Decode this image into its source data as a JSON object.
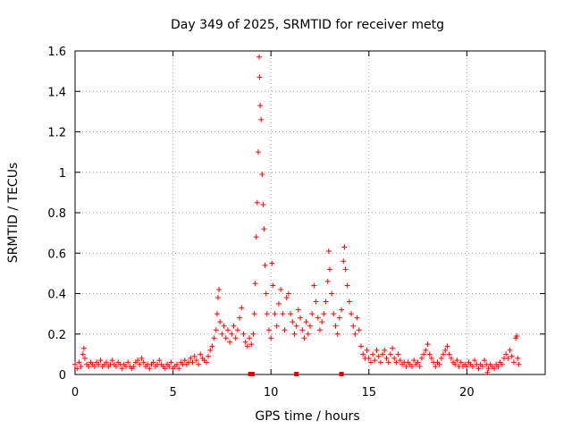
{
  "chart_data": {
    "type": "scatter",
    "title": "Day 349 of 2025, SRMTID for receiver metg",
    "xlabel": "GPS time / hours",
    "ylabel": "SRMTID / TECUs",
    "xlim": [
      0,
      24
    ],
    "ylim": [
      0,
      1.6
    ],
    "xticks": [
      0,
      5,
      10,
      15,
      20
    ],
    "xtick_labels": [
      "0",
      "5",
      "10",
      "15",
      "20"
    ],
    "yticks": [
      0,
      0.2,
      0.4,
      0.6,
      0.8,
      1.0,
      1.2,
      1.4,
      1.6
    ],
    "ytick_labels": [
      "0",
      "0.2",
      "0.4",
      "0.6",
      "0.8",
      "1",
      "1.2",
      "1.4",
      "1.6"
    ],
    "grid": true,
    "marker": "+",
    "color": "#ff0000",
    "series": [
      {
        "name": "SRMTID",
        "points": [
          [
            0.0,
            0.05
          ],
          [
            0.1,
            0.03
          ],
          [
            0.2,
            0.06
          ],
          [
            0.3,
            0.04
          ],
          [
            0.4,
            0.1
          ],
          [
            0.45,
            0.13
          ],
          [
            0.5,
            0.08
          ],
          [
            0.6,
            0.05
          ],
          [
            0.7,
            0.04
          ],
          [
            0.8,
            0.06
          ],
          [
            0.9,
            0.05
          ],
          [
            1.0,
            0.04
          ],
          [
            1.1,
            0.06
          ],
          [
            1.2,
            0.05
          ],
          [
            1.3,
            0.07
          ],
          [
            1.4,
            0.04
          ],
          [
            1.5,
            0.05
          ],
          [
            1.6,
            0.06
          ],
          [
            1.7,
            0.04
          ],
          [
            1.8,
            0.05
          ],
          [
            1.9,
            0.07
          ],
          [
            2.0,
            0.05
          ],
          [
            2.1,
            0.04
          ],
          [
            2.2,
            0.06
          ],
          [
            2.3,
            0.05
          ],
          [
            2.4,
            0.03
          ],
          [
            2.5,
            0.05
          ],
          [
            2.6,
            0.04
          ],
          [
            2.7,
            0.06
          ],
          [
            2.8,
            0.04
          ],
          [
            2.9,
            0.03
          ],
          [
            3.0,
            0.04
          ],
          [
            3.1,
            0.06
          ],
          [
            3.2,
            0.07
          ],
          [
            3.3,
            0.05
          ],
          [
            3.4,
            0.08
          ],
          [
            3.5,
            0.06
          ],
          [
            3.6,
            0.04
          ],
          [
            3.7,
            0.05
          ],
          [
            3.8,
            0.03
          ],
          [
            3.9,
            0.05
          ],
          [
            4.0,
            0.06
          ],
          [
            4.1,
            0.04
          ],
          [
            4.2,
            0.05
          ],
          [
            4.3,
            0.07
          ],
          [
            4.4,
            0.05
          ],
          [
            4.5,
            0.04
          ],
          [
            4.6,
            0.03
          ],
          [
            4.7,
            0.05
          ],
          [
            4.8,
            0.04
          ],
          [
            4.9,
            0.06
          ],
          [
            5.0,
            0.03
          ],
          [
            5.1,
            0.04
          ],
          [
            5.2,
            0.05
          ],
          [
            5.3,
            0.03
          ],
          [
            5.4,
            0.06
          ],
          [
            5.5,
            0.05
          ],
          [
            5.6,
            0.07
          ],
          [
            5.7,
            0.05
          ],
          [
            5.8,
            0.06
          ],
          [
            5.9,
            0.08
          ],
          [
            6.0,
            0.06
          ],
          [
            6.1,
            0.09
          ],
          [
            6.2,
            0.07
          ],
          [
            6.3,
            0.05
          ],
          [
            6.4,
            0.1
          ],
          [
            6.5,
            0.08
          ],
          [
            6.6,
            0.07
          ],
          [
            6.7,
            0.06
          ],
          [
            6.8,
            0.09
          ],
          [
            6.9,
            0.12
          ],
          [
            7.0,
            0.14
          ],
          [
            7.1,
            0.18
          ],
          [
            7.2,
            0.22
          ],
          [
            7.25,
            0.3
          ],
          [
            7.3,
            0.38
          ],
          [
            7.35,
            0.42
          ],
          [
            7.4,
            0.26
          ],
          [
            7.5,
            0.2
          ],
          [
            7.6,
            0.24
          ],
          [
            7.7,
            0.18
          ],
          [
            7.8,
            0.22
          ],
          [
            7.9,
            0.16
          ],
          [
            8.0,
            0.2
          ],
          [
            8.1,
            0.24
          ],
          [
            8.2,
            0.18
          ],
          [
            8.3,
            0.22
          ],
          [
            8.4,
            0.28
          ],
          [
            8.5,
            0.33
          ],
          [
            8.6,
            0.2
          ],
          [
            8.7,
            0.16
          ],
          [
            8.8,
            0.14
          ],
          [
            8.9,
            0.18
          ],
          [
            9.0,
            0.15
          ],
          [
            9.1,
            0.2
          ],
          [
            9.15,
            0.3
          ],
          [
            9.2,
            0.45
          ],
          [
            9.25,
            0.68
          ],
          [
            9.3,
            0.85
          ],
          [
            9.35,
            1.1
          ],
          [
            9.4,
            1.57
          ],
          [
            9.42,
            1.47
          ],
          [
            9.45,
            1.33
          ],
          [
            9.5,
            1.26
          ],
          [
            9.55,
            0.99
          ],
          [
            9.6,
            0.84
          ],
          [
            9.65,
            0.72
          ],
          [
            9.7,
            0.54
          ],
          [
            9.75,
            0.4
          ],
          [
            9.8,
            0.3
          ],
          [
            9.9,
            0.22
          ],
          [
            10.0,
            0.18
          ],
          [
            10.05,
            0.55
          ],
          [
            10.1,
            0.44
          ],
          [
            10.2,
            0.3
          ],
          [
            10.3,
            0.24
          ],
          [
            10.4,
            0.35
          ],
          [
            10.5,
            0.42
          ],
          [
            10.6,
            0.3
          ],
          [
            10.7,
            0.22
          ],
          [
            10.8,
            0.38
          ],
          [
            10.9,
            0.4
          ],
          [
            11.0,
            0.3
          ],
          [
            11.1,
            0.26
          ],
          [
            11.2,
            0.2
          ],
          [
            11.3,
            0.24
          ],
          [
            11.4,
            0.32
          ],
          [
            11.5,
            0.28
          ],
          [
            11.6,
            0.22
          ],
          [
            11.7,
            0.18
          ],
          [
            11.8,
            0.26
          ],
          [
            11.9,
            0.2
          ],
          [
            12.0,
            0.24
          ],
          [
            12.1,
            0.3
          ],
          [
            12.2,
            0.44
          ],
          [
            12.3,
            0.36
          ],
          [
            12.4,
            0.28
          ],
          [
            12.5,
            0.22
          ],
          [
            12.6,
            0.26
          ],
          [
            12.7,
            0.3
          ],
          [
            12.8,
            0.36
          ],
          [
            12.9,
            0.46
          ],
          [
            12.95,
            0.61
          ],
          [
            13.0,
            0.52
          ],
          [
            13.1,
            0.4
          ],
          [
            13.2,
            0.3
          ],
          [
            13.3,
            0.24
          ],
          [
            13.4,
            0.2
          ],
          [
            13.5,
            0.28
          ],
          [
            13.6,
            0.32
          ],
          [
            13.7,
            0.56
          ],
          [
            13.75,
            0.63
          ],
          [
            13.8,
            0.52
          ],
          [
            13.9,
            0.44
          ],
          [
            14.0,
            0.36
          ],
          [
            14.1,
            0.3
          ],
          [
            14.2,
            0.24
          ],
          [
            14.3,
            0.2
          ],
          [
            14.4,
            0.28
          ],
          [
            14.5,
            0.22
          ],
          [
            14.6,
            0.14
          ],
          [
            14.7,
            0.1
          ],
          [
            14.8,
            0.08
          ],
          [
            14.9,
            0.12
          ],
          [
            15.0,
            0.08
          ],
          [
            15.1,
            0.06
          ],
          [
            15.2,
            0.1
          ],
          [
            15.3,
            0.07
          ],
          [
            15.4,
            0.12
          ],
          [
            15.5,
            0.09
          ],
          [
            15.6,
            0.06
          ],
          [
            15.7,
            0.1
          ],
          [
            15.8,
            0.12
          ],
          [
            15.9,
            0.08
          ],
          [
            16.0,
            0.06
          ],
          [
            16.1,
            0.1
          ],
          [
            16.2,
            0.13
          ],
          [
            16.3,
            0.08
          ],
          [
            16.4,
            0.06
          ],
          [
            16.5,
            0.1
          ],
          [
            16.6,
            0.07
          ],
          [
            16.7,
            0.05
          ],
          [
            16.8,
            0.06
          ],
          [
            16.9,
            0.04
          ],
          [
            17.0,
            0.06
          ],
          [
            17.1,
            0.05
          ],
          [
            17.2,
            0.04
          ],
          [
            17.3,
            0.07
          ],
          [
            17.4,
            0.05
          ],
          [
            17.5,
            0.06
          ],
          [
            17.6,
            0.04
          ],
          [
            17.7,
            0.08
          ],
          [
            17.8,
            0.1
          ],
          [
            17.9,
            0.12
          ],
          [
            18.0,
            0.15
          ],
          [
            18.1,
            0.1
          ],
          [
            18.2,
            0.08
          ],
          [
            18.3,
            0.06
          ],
          [
            18.4,
            0.04
          ],
          [
            18.5,
            0.06
          ],
          [
            18.6,
            0.05
          ],
          [
            18.7,
            0.08
          ],
          [
            18.8,
            0.1
          ],
          [
            18.9,
            0.12
          ],
          [
            19.0,
            0.14
          ],
          [
            19.1,
            0.1
          ],
          [
            19.2,
            0.08
          ],
          [
            19.3,
            0.06
          ],
          [
            19.4,
            0.05
          ],
          [
            19.5,
            0.07
          ],
          [
            19.6,
            0.04
          ],
          [
            19.7,
            0.06
          ],
          [
            19.8,
            0.04
          ],
          [
            19.9,
            0.05
          ],
          [
            20.0,
            0.04
          ],
          [
            20.1,
            0.06
          ],
          [
            20.2,
            0.05
          ],
          [
            20.3,
            0.04
          ],
          [
            20.4,
            0.07
          ],
          [
            20.5,
            0.05
          ],
          [
            20.6,
            0.03
          ],
          [
            20.7,
            0.05
          ],
          [
            20.8,
            0.04
          ],
          [
            20.9,
            0.07
          ],
          [
            21.0,
            0.05
          ],
          [
            21.05,
            0.01
          ],
          [
            21.1,
            0.03
          ],
          [
            21.2,
            0.05
          ],
          [
            21.3,
            0.04
          ],
          [
            21.4,
            0.03
          ],
          [
            21.5,
            0.05
          ],
          [
            21.6,
            0.04
          ],
          [
            21.7,
            0.06
          ],
          [
            21.8,
            0.05
          ],
          [
            21.9,
            0.08
          ],
          [
            22.0,
            0.1
          ],
          [
            22.1,
            0.08
          ],
          [
            22.2,
            0.12
          ],
          [
            22.3,
            0.09
          ],
          [
            22.4,
            0.06
          ],
          [
            22.5,
            0.18
          ],
          [
            22.55,
            0.19
          ],
          [
            22.6,
            0.08
          ],
          [
            22.65,
            0.05
          ]
        ]
      }
    ],
    "axis_markers_x": [
      8.95,
      9.05,
      11.3,
      13.6
    ]
  }
}
